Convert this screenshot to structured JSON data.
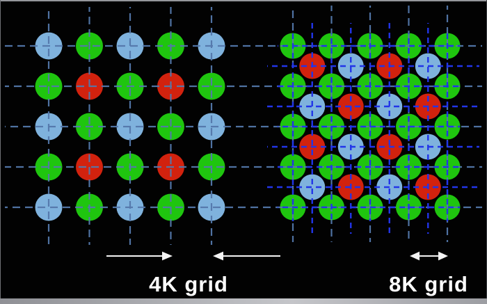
{
  "diagram": {
    "background": "#020202",
    "chrome": {
      "top_border_color": "#94969b",
      "bottom_strip_color": "#c4c5c9"
    },
    "labels": {
      "left": "4K grid",
      "right": "8K grid"
    },
    "label_color": "#ffffff",
    "pixel_colors": {
      "green": "#1fc50f",
      "red": "#d2220e",
      "blue": "#7fb2dd"
    },
    "line_colors": {
      "grid_4k": "#5478ab",
      "grid_8k": "#2235e8"
    },
    "arrow_color": "#f4f4f4",
    "left_grid": {
      "label": "4K grid",
      "pattern": [
        [
          "blue",
          "green",
          "blue",
          "green",
          "blue"
        ],
        [
          "green",
          "red",
          "green",
          "red",
          "green"
        ],
        [
          "blue",
          "green",
          "blue",
          "green",
          "blue"
        ],
        [
          "green",
          "red",
          "green",
          "red",
          "green"
        ],
        [
          "blue",
          "green",
          "blue",
          "green",
          "blue"
        ]
      ]
    },
    "right_grid": {
      "label": "8K grid",
      "main_rows": [
        [
          "green",
          "green",
          "green",
          "green",
          "green"
        ],
        [
          "green",
          "green",
          "green",
          "green",
          "green"
        ],
        [
          "green",
          "green",
          "green",
          "green",
          "green"
        ],
        [
          "green",
          "green",
          "green",
          "green",
          "green"
        ],
        [
          "green",
          "green",
          "green",
          "green",
          "green"
        ]
      ],
      "offset_rows": [
        [
          "red",
          "blue",
          "red",
          "blue"
        ],
        [
          "blue",
          "red",
          "blue",
          "red"
        ],
        [
          "red",
          "blue",
          "red",
          "blue"
        ],
        [
          "blue",
          "red",
          "blue",
          "red"
        ]
      ]
    },
    "arrows": [
      {
        "name": "pitch-arrow-pointing-right",
        "direction": "right"
      },
      {
        "name": "pitch-arrow-pointing-left",
        "direction": "left"
      },
      {
        "name": "pitch-arrow-double",
        "direction": "both"
      }
    ]
  }
}
